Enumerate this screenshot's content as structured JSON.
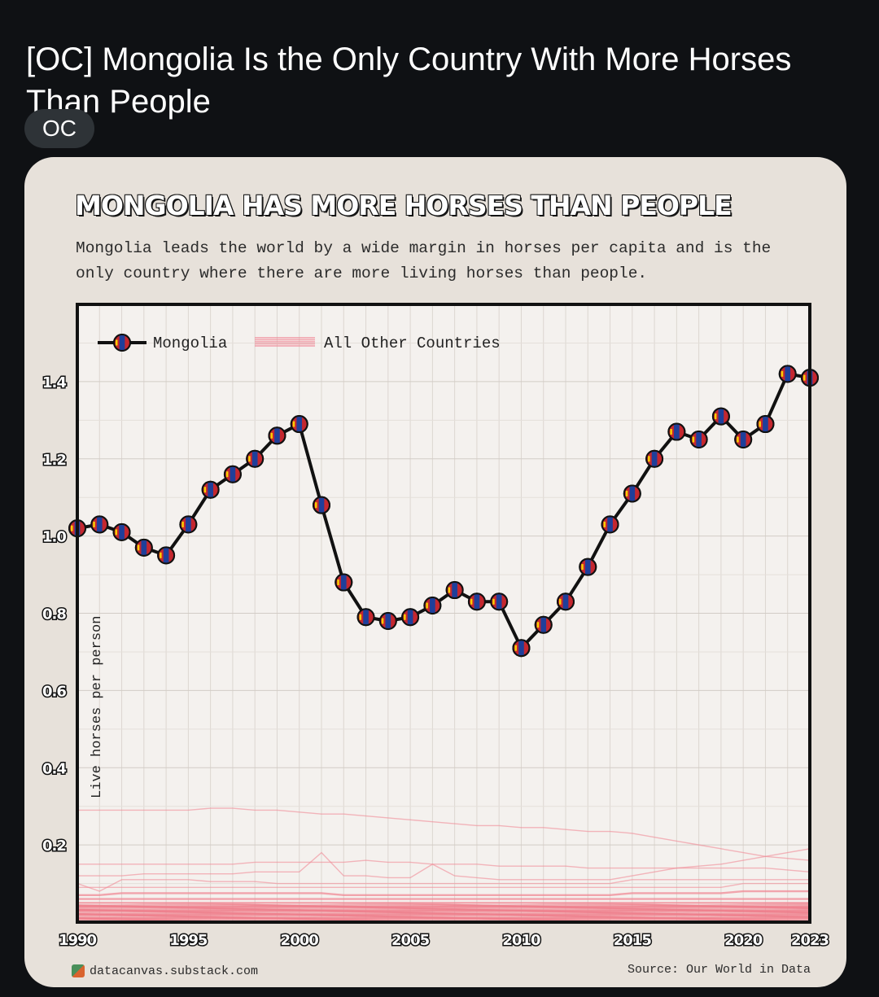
{
  "post": {
    "title": "[OC] Mongolia Is the Only Country With More Horses Than People",
    "flair": "OC"
  },
  "chart_data": {
    "type": "line",
    "title": "MONGOLIA HAS MORE HORSES THAN PEOPLE",
    "subtitle": "Mongolia leads the world by a wide margin in horses per capita and is the only country where there are more living horses than people.",
    "ylabel": "Live horses per person",
    "xlabel": "",
    "xlim": [
      1990,
      2023
    ],
    "ylim": [
      0,
      1.6
    ],
    "yticks": [
      0.2,
      0.4,
      0.6,
      0.8,
      1.0,
      1.2,
      1.4
    ],
    "ytick_labels": [
      "0.2",
      "0.4",
      "0.6",
      "0.8",
      "1.0",
      "1.2",
      "1.4"
    ],
    "xticks": [
      1990,
      1995,
      2000,
      2005,
      2010,
      2015,
      2020,
      2023
    ],
    "xtick_labels": [
      "1990",
      "1995",
      "2000",
      "2005",
      "2010",
      "2015",
      "2020",
      "2023"
    ],
    "grid": true,
    "legend_position": "top-left",
    "x": [
      1990,
      1991,
      1992,
      1993,
      1994,
      1995,
      1996,
      1997,
      1998,
      1999,
      2000,
      2001,
      2002,
      2003,
      2004,
      2005,
      2006,
      2007,
      2008,
      2009,
      2010,
      2011,
      2012,
      2013,
      2014,
      2015,
      2016,
      2017,
      2018,
      2019,
      2020,
      2021,
      2022,
      2023
    ],
    "series": [
      {
        "name": "Mongolia",
        "color": "#111111",
        "marker": "mongolian-flag-icon",
        "values": [
          1.02,
          1.03,
          1.01,
          0.97,
          0.95,
          1.03,
          1.12,
          1.16,
          1.2,
          1.26,
          1.29,
          1.08,
          0.88,
          0.79,
          0.78,
          0.79,
          0.82,
          0.86,
          0.83,
          0.83,
          0.71,
          0.77,
          0.83,
          0.92,
          1.03,
          1.11,
          1.2,
          1.27,
          1.25,
          1.31,
          1.25,
          1.29,
          1.42,
          1.41
        ]
      },
      {
        "name": "All Other Countries",
        "color": "#f08a96",
        "lines": [
          [
            0.29,
            0.29,
            0.29,
            0.29,
            0.29,
            0.29,
            0.295,
            0.295,
            0.29,
            0.29,
            0.285,
            0.28,
            0.28,
            0.275,
            0.27,
            0.265,
            0.26,
            0.255,
            0.25,
            0.25,
            0.245,
            0.245,
            0.24,
            0.235,
            0.235,
            0.23,
            0.22,
            0.21,
            0.2,
            0.19,
            0.18,
            0.17,
            0.165,
            0.16
          ],
          [
            0.15,
            0.15,
            0.15,
            0.15,
            0.15,
            0.15,
            0.15,
            0.15,
            0.155,
            0.155,
            0.155,
            0.155,
            0.155,
            0.16,
            0.155,
            0.155,
            0.15,
            0.15,
            0.15,
            0.145,
            0.145,
            0.145,
            0.145,
            0.14,
            0.14,
            0.14,
            0.14,
            0.14,
            0.14,
            0.14,
            0.14,
            0.14,
            0.135,
            0.13
          ],
          [
            0.12,
            0.12,
            0.12,
            0.125,
            0.125,
            0.125,
            0.125,
            0.125,
            0.13,
            0.13,
            0.13,
            0.18,
            0.12,
            0.12,
            0.115,
            0.115,
            0.15,
            0.12,
            0.115,
            0.11,
            0.11,
            0.11,
            0.11,
            0.11,
            0.11,
            0.12,
            0.13,
            0.14,
            0.145,
            0.15,
            0.16,
            0.17,
            0.18,
            0.19
          ],
          [
            0.1,
            0.08,
            0.11,
            0.11,
            0.11,
            0.11,
            0.105,
            0.105,
            0.105,
            0.1,
            0.1,
            0.1,
            0.1,
            0.1,
            0.1,
            0.1,
            0.1,
            0.1,
            0.1,
            0.1,
            0.1,
            0.1,
            0.1,
            0.1,
            0.1,
            0.11,
            0.11,
            0.11,
            0.11,
            0.11,
            0.11,
            0.11,
            0.11,
            0.11
          ],
          [
            0.09,
            0.09,
            0.09,
            0.09,
            0.09,
            0.09,
            0.09,
            0.09,
            0.09,
            0.09,
            0.09,
            0.09,
            0.09,
            0.09,
            0.09,
            0.09,
            0.09,
            0.09,
            0.09,
            0.09,
            0.09,
            0.09,
            0.09,
            0.09,
            0.09,
            0.09,
            0.09,
            0.09,
            0.09,
            0.09,
            0.1,
            0.1,
            0.1,
            0.1
          ],
          [
            0.07,
            0.07,
            0.075,
            0.075,
            0.075,
            0.075,
            0.075,
            0.075,
            0.075,
            0.075,
            0.075,
            0.075,
            0.07,
            0.07,
            0.07,
            0.07,
            0.07,
            0.07,
            0.07,
            0.07,
            0.07,
            0.07,
            0.07,
            0.07,
            0.07,
            0.075,
            0.075,
            0.075,
            0.075,
            0.075,
            0.08,
            0.08,
            0.08,
            0.08
          ],
          [
            0.06,
            0.06,
            0.06,
            0.06,
            0.06,
            0.06,
            0.06,
            0.06,
            0.06,
            0.06,
            0.06,
            0.06,
            0.06,
            0.06,
            0.06,
            0.06,
            0.06,
            0.06,
            0.06,
            0.06,
            0.06,
            0.06,
            0.06,
            0.06,
            0.06,
            0.06,
            0.06,
            0.06,
            0.06,
            0.06,
            0.06,
            0.06,
            0.06,
            0.06
          ],
          [
            0.05,
            0.05,
            0.05,
            0.05,
            0.05,
            0.05,
            0.05,
            0.05,
            0.05,
            0.05,
            0.05,
            0.05,
            0.05,
            0.05,
            0.05,
            0.05,
            0.05,
            0.05,
            0.05,
            0.05,
            0.05,
            0.05,
            0.05,
            0.05,
            0.05,
            0.05,
            0.05,
            0.05,
            0.05,
            0.05,
            0.05,
            0.05,
            0.05,
            0.05
          ],
          [
            0.04,
            0.04,
            0.04,
            0.04,
            0.04,
            0.04,
            0.04,
            0.04,
            0.04,
            0.04,
            0.04,
            0.04,
            0.04,
            0.04,
            0.04,
            0.04,
            0.04,
            0.04,
            0.04,
            0.04,
            0.04,
            0.04,
            0.04,
            0.04,
            0.04,
            0.04,
            0.04,
            0.04,
            0.04,
            0.04,
            0.04,
            0.04,
            0.04,
            0.04
          ],
          [
            0.03,
            0.03,
            0.03,
            0.03,
            0.03,
            0.03,
            0.03,
            0.03,
            0.03,
            0.03,
            0.03,
            0.03,
            0.03,
            0.03,
            0.03,
            0.03,
            0.03,
            0.03,
            0.03,
            0.03,
            0.03,
            0.03,
            0.03,
            0.03,
            0.03,
            0.03,
            0.03,
            0.03,
            0.03,
            0.03,
            0.03,
            0.03,
            0.03,
            0.03
          ],
          [
            0.02,
            0.02,
            0.02,
            0.02,
            0.02,
            0.02,
            0.02,
            0.02,
            0.02,
            0.02,
            0.02,
            0.02,
            0.02,
            0.02,
            0.02,
            0.02,
            0.02,
            0.02,
            0.02,
            0.02,
            0.02,
            0.02,
            0.02,
            0.02,
            0.02,
            0.02,
            0.02,
            0.02,
            0.02,
            0.02,
            0.02,
            0.02,
            0.02,
            0.02
          ],
          [
            0.01,
            0.01,
            0.01,
            0.01,
            0.01,
            0.01,
            0.01,
            0.01,
            0.01,
            0.01,
            0.01,
            0.01,
            0.01,
            0.01,
            0.01,
            0.01,
            0.01,
            0.01,
            0.01,
            0.01,
            0.01,
            0.01,
            0.01,
            0.01,
            0.01,
            0.01,
            0.01,
            0.01,
            0.01,
            0.01,
            0.01,
            0.01,
            0.01,
            0.01
          ]
        ]
      }
    ],
    "footer_left": "datacanvas.substack.com",
    "footer_right": "Source: Our World in Data"
  }
}
